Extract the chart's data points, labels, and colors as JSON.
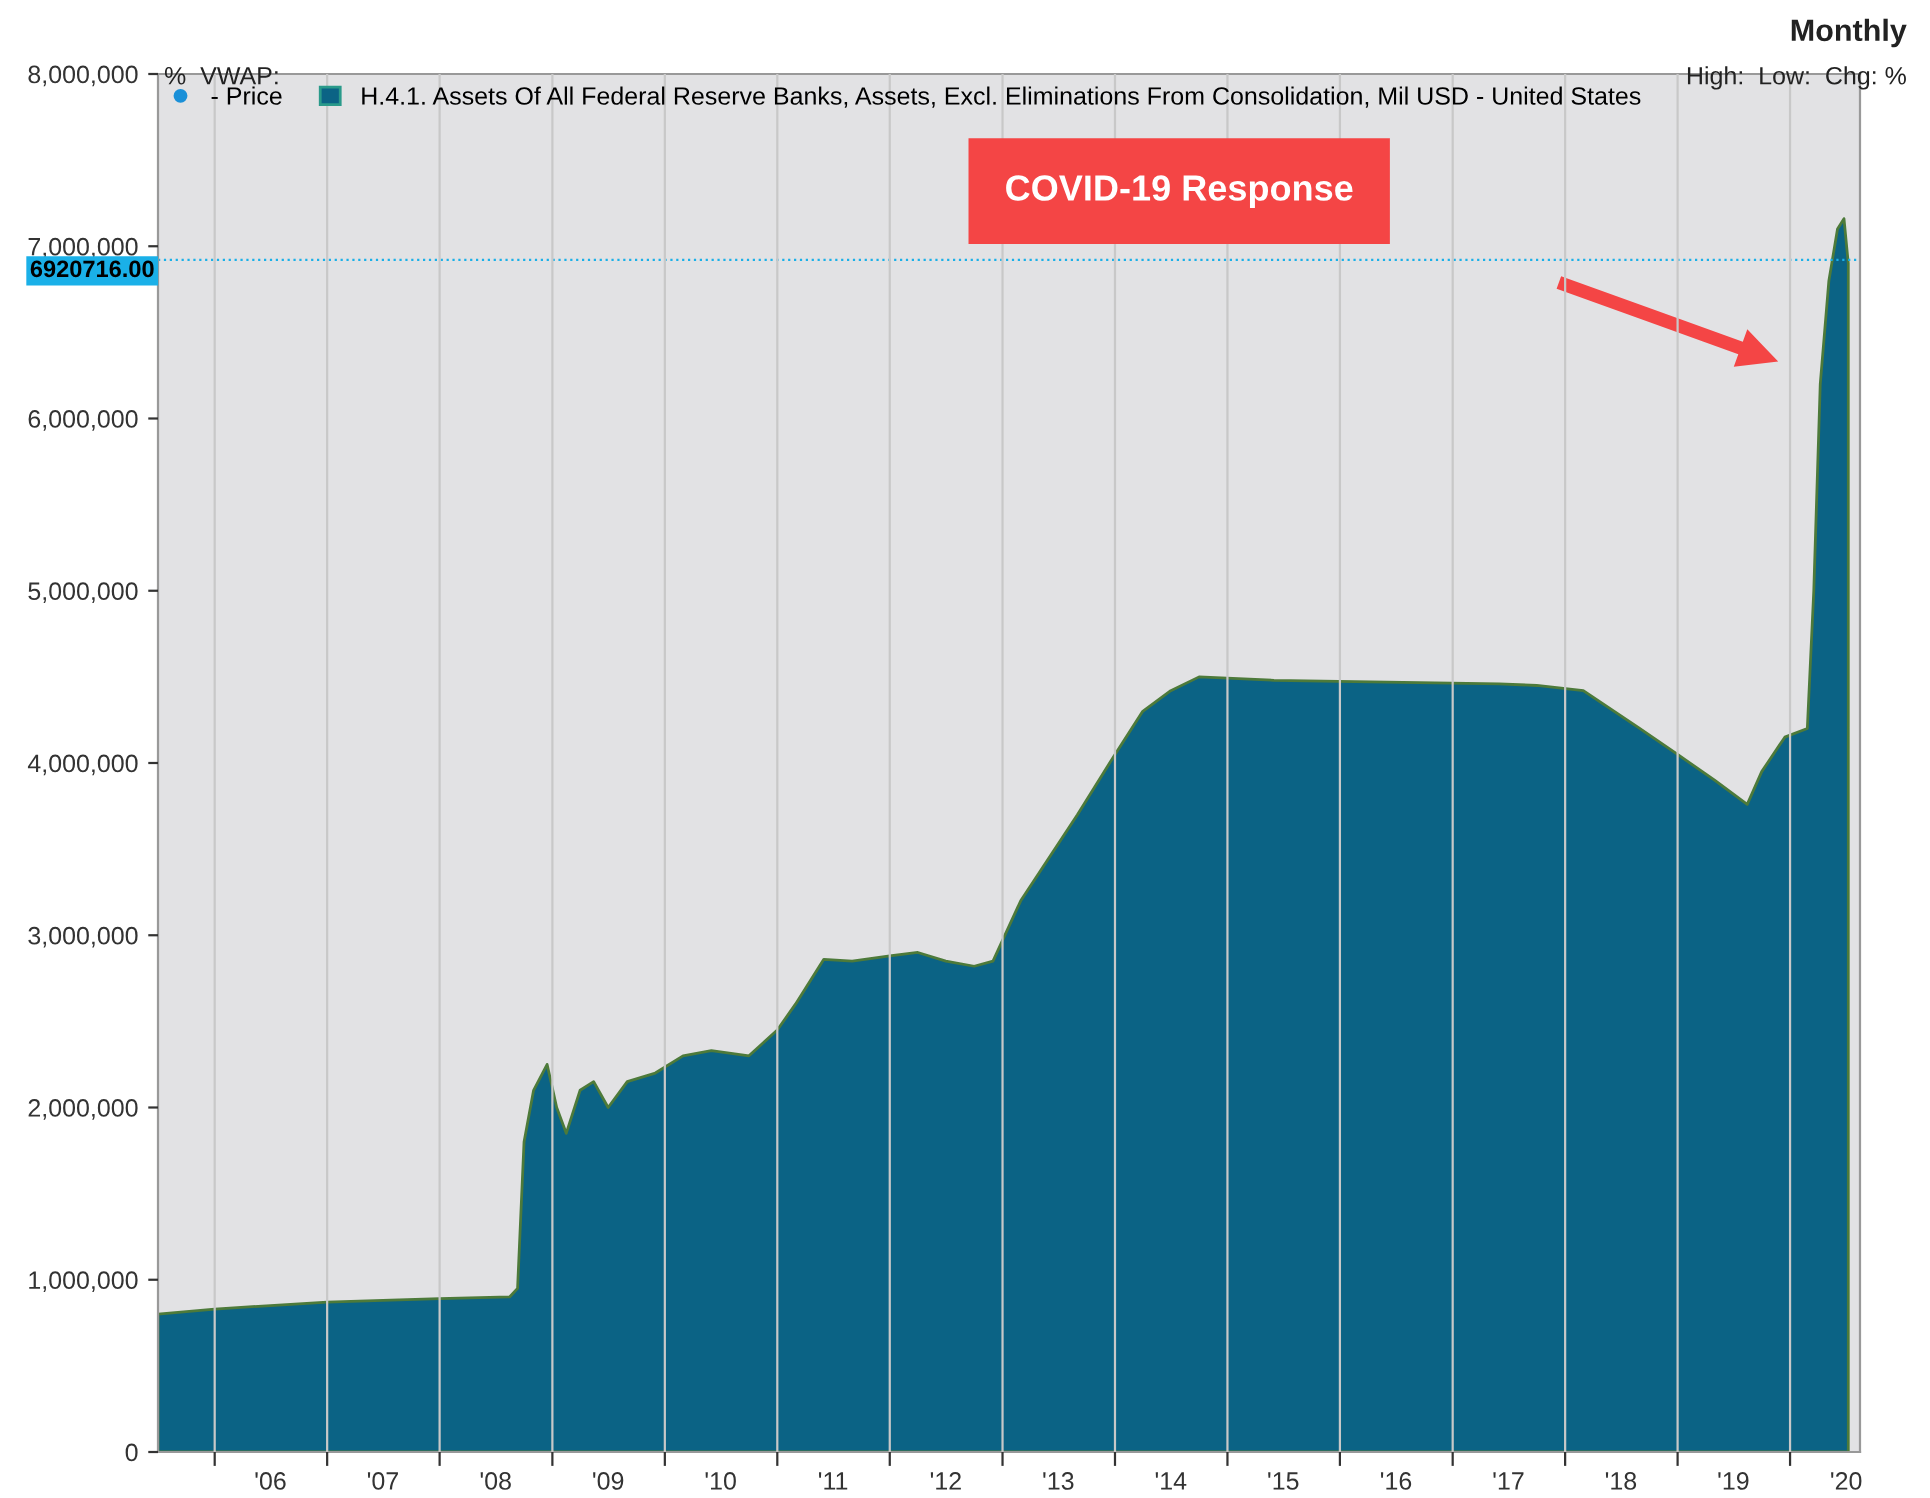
{
  "chart_data": {
    "type": "area",
    "series": [
      {
        "name": "H.4.1. Assets Of All Federal Reserve Banks, Assets, Excl. Eliminations From Consolidation, Mil USD - United States",
        "color": "#0b6385",
        "x": [
          "2005-07-01",
          "2006-01-01",
          "2006-07-01",
          "2007-01-01",
          "2007-07-01",
          "2008-01-01",
          "2008-08-15",
          "2008-09-10",
          "2008-10-01",
          "2008-11-01",
          "2008-12-15",
          "2009-01-15",
          "2009-02-15",
          "2009-04-01",
          "2009-05-15",
          "2009-07-01",
          "2009-09-01",
          "2009-12-01",
          "2010-03-01",
          "2010-06-01",
          "2010-10-01",
          "2011-01-01",
          "2011-03-01",
          "2011-06-01",
          "2011-09-01",
          "2012-01-01",
          "2012-04-01",
          "2012-07-01",
          "2012-10-01",
          "2012-12-01",
          "2013-03-01",
          "2013-06-01",
          "2013-09-01",
          "2014-01-01",
          "2014-04-01",
          "2014-07-01",
          "2014-10-01",
          "2015-06-01",
          "2016-06-01",
          "2017-06-01",
          "2017-10-01",
          "2018-03-01",
          "2018-09-01",
          "2019-01-01",
          "2019-05-01",
          "2019-08-15",
          "2019-10-01",
          "2019-12-15",
          "2020-02-26",
          "2020-03-18",
          "2020-04-08",
          "2020-05-06",
          "2020-06-03",
          "2020-06-24",
          "2020-07-08"
        ],
        "values": [
          800000,
          830000,
          850000,
          870000,
          880000,
          890000,
          900000,
          950000,
          1800000,
          2100000,
          2250000,
          2000000,
          1850000,
          2100000,
          2150000,
          2000000,
          2150000,
          2200000,
          2300000,
          2330000,
          2300000,
          2450000,
          2600000,
          2860000,
          2850000,
          2880000,
          2900000,
          2850000,
          2820000,
          2850000,
          3200000,
          3450000,
          3700000,
          4050000,
          4300000,
          4420000,
          4500000,
          4480000,
          4470000,
          4460000,
          4450000,
          4420000,
          4200000,
          4050000,
          3900000,
          3760000,
          3950000,
          4150000,
          4200000,
          5000000,
          6200000,
          6800000,
          7100000,
          7160000,
          6900000
        ]
      }
    ],
    "xlim": [
      "2005-07-01",
      "2020-08-15"
    ],
    "xticks": [
      {
        "value": "2006-01-01",
        "label": null
      },
      {
        "value": "2006-07-01",
        "label": "'06"
      },
      {
        "value": "2007-01-01",
        "label": null
      },
      {
        "value": "2007-07-01",
        "label": "'07"
      },
      {
        "value": "2008-01-01",
        "label": null
      },
      {
        "value": "2008-07-01",
        "label": "'08"
      },
      {
        "value": "2009-01-01",
        "label": null
      },
      {
        "value": "2009-07-01",
        "label": "'09"
      },
      {
        "value": "2010-01-01",
        "label": null
      },
      {
        "value": "2010-07-01",
        "label": "'10"
      },
      {
        "value": "2011-01-01",
        "label": null
      },
      {
        "value": "2011-07-01",
        "label": "'11"
      },
      {
        "value": "2012-01-01",
        "label": null
      },
      {
        "value": "2012-07-01",
        "label": "'12"
      },
      {
        "value": "2013-01-01",
        "label": null
      },
      {
        "value": "2013-07-01",
        "label": "'13"
      },
      {
        "value": "2014-01-01",
        "label": null
      },
      {
        "value": "2014-07-01",
        "label": "'14"
      },
      {
        "value": "2015-01-01",
        "label": null
      },
      {
        "value": "2015-07-01",
        "label": "'15"
      },
      {
        "value": "2016-01-01",
        "label": null
      },
      {
        "value": "2016-07-01",
        "label": "'16"
      },
      {
        "value": "2017-01-01",
        "label": null
      },
      {
        "value": "2017-07-01",
        "label": "'17"
      },
      {
        "value": "2018-01-01",
        "label": null
      },
      {
        "value": "2018-07-01",
        "label": "'18"
      },
      {
        "value": "2019-01-01",
        "label": null
      },
      {
        "value": "2019-07-01",
        "label": "'19"
      },
      {
        "value": "2020-01-01",
        "label": null
      },
      {
        "value": "2020-07-01",
        "label": "'20"
      }
    ],
    "ylim": [
      0,
      8000000
    ],
    "yticks": [
      0,
      {
        "value": 1000000,
        "label": "1,000,000"
      },
      {
        "value": 2000000,
        "label": "2,000,000"
      },
      {
        "value": 3000000,
        "label": "3,000,000"
      },
      {
        "value": 4000000,
        "label": "4,000,000"
      },
      {
        "value": 5000000,
        "label": "5,000,000"
      },
      {
        "value": 6000000,
        "label": "6,000,000"
      },
      {
        "value": 7000000,
        "label": "7,000,000"
      },
      {
        "value": 8000000,
        "label": "8,000,000"
      }
    ],
    "grid": "x",
    "legend": "top left",
    "ref_lines": [
      {
        "axis": "y",
        "value": 6920716,
        "label": "6920716.00",
        "color": "#1ab0e8",
        "line_style": "dotted"
      }
    ],
    "annotations": [
      "COVID-19 Response",
      "Monthly",
      "%  VWAP:",
      "High:  Low:  Chg: %",
      "- Price"
    ]
  }
}
